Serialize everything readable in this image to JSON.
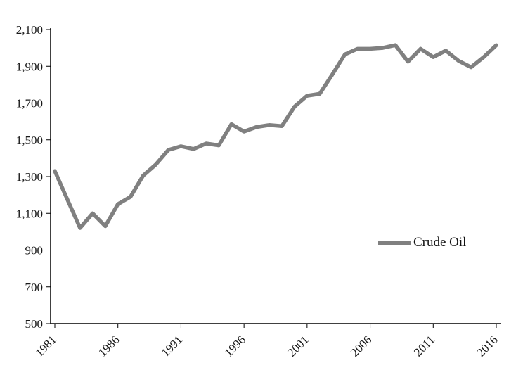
{
  "chart_data": {
    "type": "line",
    "title": "",
    "xlabel": "",
    "ylabel": "",
    "grid": false,
    "background_color": "#ffffff",
    "axis_color": "#000000",
    "line_color": "#808080",
    "ylim": [
      500,
      2100
    ],
    "ytick_step": 200,
    "ytick_labels": [
      "500",
      "700",
      "900",
      "1,100",
      "1,300",
      "1,500",
      "1,700",
      "1,900",
      "2,100"
    ],
    "xtick_labels": [
      "1981",
      "1986",
      "1991",
      "1996",
      "2001",
      "2006",
      "2011",
      "2016"
    ],
    "x": [
      1981,
      1982,
      1983,
      1984,
      1985,
      1986,
      1987,
      1988,
      1989,
      1990,
      1991,
      1992,
      1993,
      1994,
      1995,
      1996,
      1997,
      1998,
      1999,
      2000,
      2001,
      2002,
      2003,
      2004,
      2005,
      2006,
      2007,
      2008,
      2009,
      2010,
      2011,
      2012,
      2013,
      2014,
      2015,
      2016
    ],
    "series": [
      {
        "name": "Crude Oil",
        "color": "#808080",
        "values": [
          1330,
          1175,
          1020,
          1100,
          1030,
          1150,
          1190,
          1305,
          1365,
          1445,
          1465,
          1450,
          1480,
          1470,
          1585,
          1545,
          1570,
          1580,
          1575,
          1680,
          1740,
          1750,
          1855,
          1965,
          1995,
          1995,
          2000,
          2015,
          1925,
          1995,
          1950,
          1985,
          1930,
          1895,
          1950,
          2015
        ]
      }
    ],
    "legend": {
      "label": "Crude Oil",
      "position": "middle-right"
    }
  }
}
